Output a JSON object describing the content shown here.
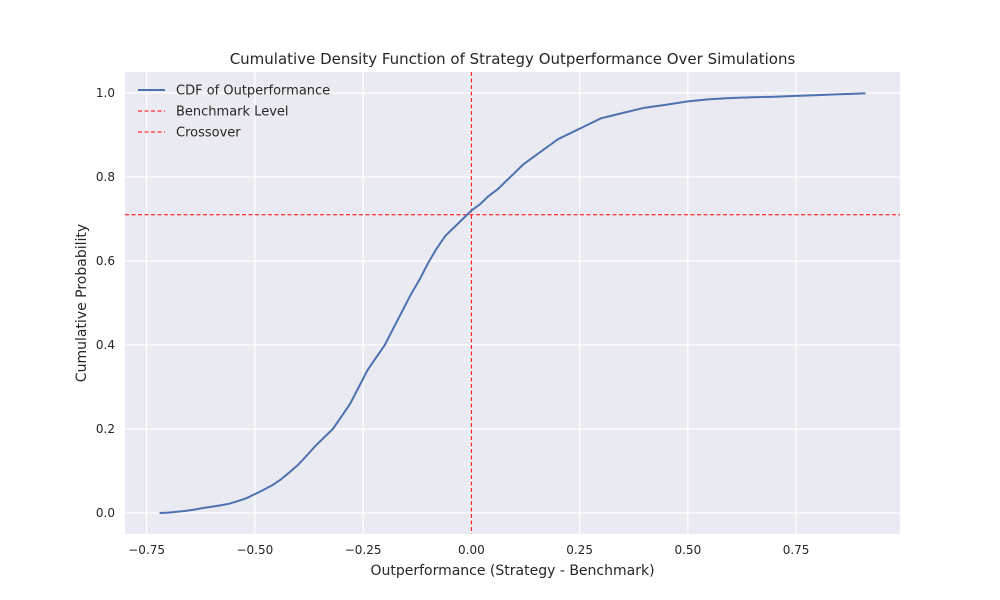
{
  "chart_data": {
    "type": "line",
    "title": "Cumulative Density Function of Strategy Outperformance Over Simulations",
    "xlabel": "Outperformance (Strategy - Benchmark)",
    "ylabel": "Cumulative Probability",
    "xlim": [
      -0.8,
      0.99
    ],
    "ylim": [
      -0.05,
      1.05
    ],
    "xticks": [
      -0.75,
      -0.5,
      -0.25,
      0.0,
      0.25,
      0.5,
      0.75
    ],
    "xtick_labels": [
      "−0.75",
      "−0.50",
      "−0.25",
      "0.00",
      "0.25",
      "0.50",
      "0.75"
    ],
    "yticks": [
      0.0,
      0.2,
      0.4,
      0.6,
      0.8,
      1.0
    ],
    "ytick_labels": [
      "0.0",
      "0.2",
      "0.4",
      "0.6",
      "0.8",
      "1.0"
    ],
    "grid": true,
    "legend_position": "top-left",
    "series": [
      {
        "name": "CDF of Outperformance",
        "style": "solid",
        "color": "#4c72b0",
        "x": [
          -0.72,
          -0.7,
          -0.68,
          -0.66,
          -0.64,
          -0.62,
          -0.6,
          -0.58,
          -0.56,
          -0.54,
          -0.52,
          -0.5,
          -0.48,
          -0.46,
          -0.44,
          -0.42,
          -0.4,
          -0.38,
          -0.36,
          -0.34,
          -0.32,
          -0.3,
          -0.28,
          -0.26,
          -0.24,
          -0.22,
          -0.2,
          -0.18,
          -0.16,
          -0.14,
          -0.12,
          -0.1,
          -0.08,
          -0.06,
          -0.04,
          -0.02,
          0.0,
          0.02,
          0.04,
          0.06,
          0.08,
          0.1,
          0.12,
          0.14,
          0.16,
          0.18,
          0.2,
          0.22,
          0.24,
          0.26,
          0.28,
          0.3,
          0.32,
          0.34,
          0.36,
          0.38,
          0.4,
          0.45,
          0.5,
          0.55,
          0.6,
          0.65,
          0.7,
          0.75,
          0.8,
          0.85,
          0.91
        ],
        "y": [
          0.0,
          0.001,
          0.003,
          0.005,
          0.008,
          0.012,
          0.015,
          0.018,
          0.022,
          0.028,
          0.035,
          0.045,
          0.055,
          0.066,
          0.08,
          0.097,
          0.115,
          0.137,
          0.16,
          0.18,
          0.2,
          0.23,
          0.26,
          0.3,
          0.34,
          0.37,
          0.4,
          0.44,
          0.48,
          0.52,
          0.555,
          0.595,
          0.63,
          0.66,
          0.68,
          0.7,
          0.72,
          0.735,
          0.755,
          0.77,
          0.79,
          0.81,
          0.83,
          0.845,
          0.86,
          0.875,
          0.89,
          0.9,
          0.91,
          0.92,
          0.93,
          0.94,
          0.945,
          0.95,
          0.955,
          0.96,
          0.965,
          0.972,
          0.98,
          0.985,
          0.988,
          0.99,
          0.991,
          0.993,
          0.995,
          0.997,
          0.999
        ]
      },
      {
        "name": "Benchmark Level",
        "style": "dashed",
        "color": "#ff0000",
        "orientation": "horizontal",
        "y": 0.71
      },
      {
        "name": "Crossover",
        "style": "dashed",
        "color": "#ff0000",
        "orientation": "vertical",
        "x": 0.0
      }
    ]
  }
}
